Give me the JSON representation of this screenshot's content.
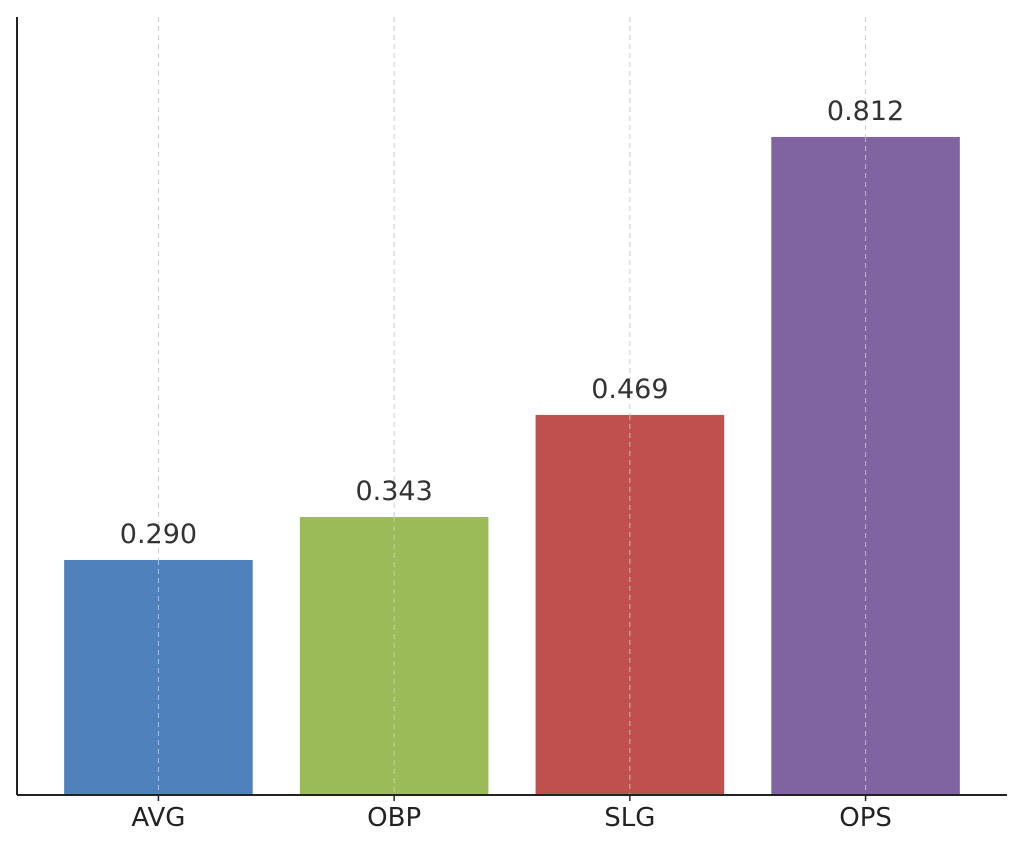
{
  "chart_data": {
    "type": "bar",
    "title": "",
    "xlabel": "",
    "ylabel": "",
    "categories": [
      "AVG",
      "OBP",
      "SLG",
      "OPS"
    ],
    "values": [
      0.29,
      0.343,
      0.469,
      0.812
    ],
    "value_labels": [
      "0.290",
      "0.343",
      "0.469",
      "0.812"
    ],
    "colors": [
      "#4f81bd",
      "#9bbb59",
      "#c0504d",
      "#8064a2"
    ],
    "ylim": [
      0,
      0.96
    ],
    "grid": {
      "x": true,
      "y": false,
      "style": "dashed"
    },
    "y_ticks_visible": false,
    "legend": "none"
  }
}
